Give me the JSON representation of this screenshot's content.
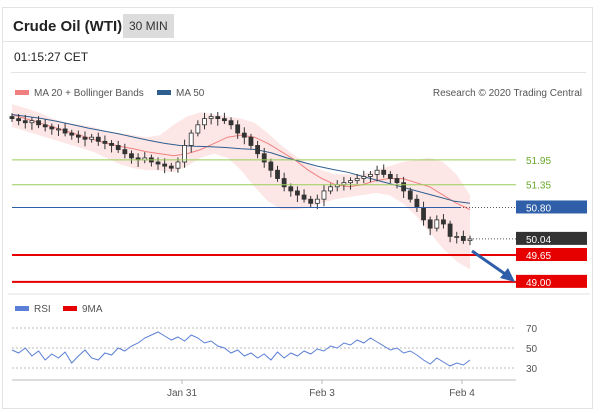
{
  "header": {
    "instrument": "Crude Oil (WTI)",
    "interval": "30 MIN",
    "time": "01:15:27 CET"
  },
  "legend": {
    "ma20_label": "MA 20 + Bollinger Bands",
    "ma50_label": "MA 50",
    "credit": "Research © 2020 Trading Central",
    "rsi_label": "RSI",
    "ma9_label": "9MA"
  },
  "colors": {
    "ma20": "#f08080",
    "band": "#fde2e2",
    "ma50": "#2f5f8f",
    "resistance": "#9acd58",
    "pivot": "#2f5fa8",
    "support": "#e60000",
    "last": "#333333",
    "rsi": "#5b7fd6",
    "rsi_ma": "#e60000"
  },
  "chart_data": [
    {
      "type": "candlestick",
      "title": "Crude Oil (WTI)",
      "x_tick_labels": [
        "Jan 31",
        "Feb 3",
        "Feb 4"
      ],
      "ylim": [
        48.9,
        53.4
      ],
      "levels": [
        {
          "label": "51.95",
          "value": 51.95,
          "kind": "resistance"
        },
        {
          "label": "51.35",
          "value": 51.35,
          "kind": "resistance"
        },
        {
          "label": "50.80",
          "value": 50.8,
          "kind": "pivot"
        },
        {
          "label": "50.04",
          "value": 50.04,
          "kind": "last"
        },
        {
          "label": "49.65",
          "value": 49.65,
          "kind": "support"
        },
        {
          "label": "49.00",
          "value": 49.0,
          "kind": "support"
        }
      ],
      "close": [
        52.95,
        52.9,
        52.85,
        52.9,
        52.8,
        52.75,
        52.7,
        52.7,
        52.6,
        52.55,
        52.5,
        52.45,
        52.5,
        52.4,
        52.35,
        52.3,
        52.2,
        52.1,
        52.0,
        51.95,
        52.0,
        51.9,
        51.85,
        51.8,
        51.75,
        51.9,
        52.3,
        52.6,
        52.8,
        52.95,
        53.0,
        52.95,
        52.9,
        52.8,
        52.6,
        52.5,
        52.3,
        52.1,
        51.9,
        51.7,
        51.5,
        51.3,
        51.2,
        51.1,
        51.0,
        50.9,
        51.0,
        51.2,
        51.3,
        51.35,
        51.4,
        51.45,
        51.5,
        51.55,
        51.6,
        51.7,
        51.6,
        51.5,
        51.4,
        51.2,
        51.0,
        50.8,
        50.5,
        50.3,
        50.5,
        50.4,
        50.1,
        50.1,
        50.0,
        50.04
      ],
      "ma20": [
        53.05,
        52.95,
        52.85,
        52.75,
        52.65,
        52.55,
        52.45,
        52.35,
        52.28,
        52.22,
        52.15,
        52.1,
        52.05,
        52.1,
        52.2,
        52.35,
        52.5,
        52.55,
        52.5,
        52.35,
        52.15,
        51.95,
        51.7,
        51.5,
        51.35,
        51.3,
        51.35,
        51.45,
        51.5,
        51.5,
        51.4,
        51.3,
        51.1,
        50.9,
        50.75
      ],
      "ma50": [
        53.05,
        53.0,
        52.95,
        52.88,
        52.8,
        52.72,
        52.65,
        52.58,
        52.5,
        52.42,
        52.35,
        52.3,
        52.28,
        52.27,
        52.25,
        52.22,
        52.2,
        52.12,
        52.0,
        51.9,
        51.8,
        51.72,
        51.65,
        51.55,
        51.45,
        51.35,
        51.25,
        51.15,
        51.05,
        50.95,
        50.9
      ],
      "bollinger_upper": [
        53.3,
        53.2,
        53.1,
        52.95,
        52.85,
        52.8,
        52.75,
        52.65,
        52.6,
        52.55,
        52.5,
        52.55,
        52.8,
        53.0,
        53.1,
        53.05,
        53.0,
        52.95,
        52.85,
        52.6,
        52.3,
        52.05,
        51.85,
        51.7,
        51.6,
        51.6,
        51.6,
        51.7,
        51.8,
        51.9,
        51.95,
        52.0,
        51.9,
        51.6,
        51.1
      ],
      "bollinger_lower": [
        52.75,
        52.65,
        52.55,
        52.45,
        52.35,
        52.25,
        52.15,
        52.0,
        51.85,
        51.75,
        51.7,
        51.7,
        51.65,
        51.8,
        52.0,
        52.1,
        52.0,
        51.7,
        51.3,
        50.95,
        50.75,
        50.75,
        50.8,
        50.9,
        51.0,
        51.05,
        51.1,
        51.15,
        51.1,
        50.9,
        50.6,
        50.2,
        49.8,
        49.5,
        49.3
      ]
    },
    {
      "type": "line",
      "title": "RSI",
      "ylim": [
        20,
        80
      ],
      "y_ticks": [
        70,
        50,
        30
      ],
      "series": [
        {
          "name": "RSI",
          "values": [
            48,
            45,
            50,
            42,
            47,
            38,
            44,
            40,
            46,
            35,
            42,
            48,
            40,
            38,
            45,
            43,
            50,
            47,
            52,
            55,
            60,
            63,
            66,
            62,
            58,
            61,
            57,
            63,
            60,
            55,
            57,
            52,
            50,
            45,
            48,
            42,
            45,
            40,
            44,
            38,
            46,
            40,
            45,
            42,
            47,
            44,
            49,
            47,
            52,
            50,
            55,
            53,
            58,
            55,
            60,
            56,
            52,
            48,
            50,
            45,
            47,
            43,
            38,
            34,
            40,
            36,
            32,
            35,
            33,
            38
          ]
        },
        {
          "name": "9MA",
          "values": []
        }
      ]
    }
  ]
}
